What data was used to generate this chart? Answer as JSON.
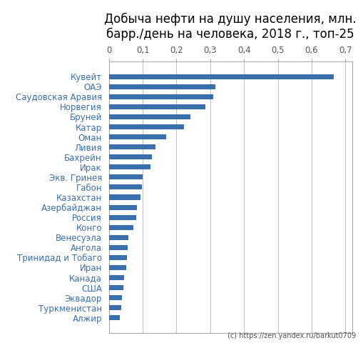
{
  "title": "Добыча нефти на душу населения, млн.\nбарр./день на человека, 2018 г., топ-25",
  "countries": [
    "Кувейт",
    "ОАЭ",
    "Саудовская Аравия",
    "Норвегия",
    "Бруней",
    "Катар",
    "Оман",
    "Ливия",
    "Бахрейн",
    "Ирак",
    "Экв. Гринея",
    "Габон",
    "Казахстан",
    "Азербайджан",
    "Россия",
    "Конго",
    "Венесуэла",
    "Ангола",
    "Тринидад и Тобаго",
    "Иран",
    "Канада",
    "США",
    "Эквадор",
    "Туркменистан",
    "Алжир"
  ],
  "values": [
    0.665,
    0.315,
    0.308,
    0.285,
    0.242,
    0.222,
    0.17,
    0.138,
    0.128,
    0.123,
    0.1,
    0.097,
    0.093,
    0.082,
    0.08,
    0.072,
    0.058,
    0.056,
    0.054,
    0.052,
    0.045,
    0.043,
    0.038,
    0.037,
    0.033
  ],
  "bar_color": "#3a6fad",
  "background_color": "#ffffff",
  "grid_color": "#c0c0c0",
  "title_color": "#000000",
  "label_color": "#3a6fad",
  "tick_color": "#555555",
  "xlim": [
    0,
    0.72
  ],
  "xticks": [
    0,
    0.1,
    0.2,
    0.3,
    0.4,
    0.5,
    0.6,
    0.7
  ],
  "xtick_labels": [
    "0",
    "0,1",
    "0,2",
    "0,3",
    "0,4",
    "0,5",
    "0,6",
    "0,7"
  ],
  "title_fontsize": 12,
  "tick_fontsize": 8.5,
  "label_fontsize": 8.5,
  "watermark": "(c) https://zen.yandex.ru/barkut0709",
  "bar_height": 0.5
}
